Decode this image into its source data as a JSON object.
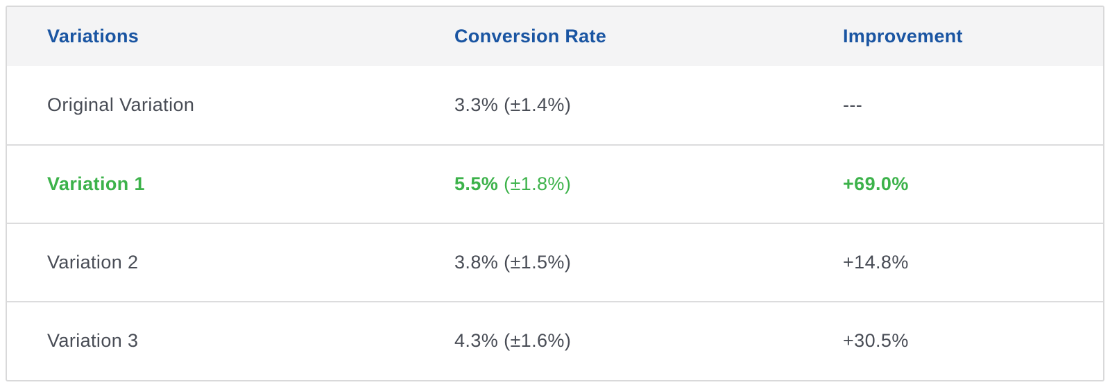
{
  "table": {
    "columns": [
      {
        "label": "Variations"
      },
      {
        "label": "Conversion Rate"
      },
      {
        "label": "Improvement"
      }
    ],
    "rows": [
      {
        "variation": "Original Variation",
        "rate_value": "3.3%",
        "rate_ci": "(±1.4%)",
        "improvement": "---",
        "highlight": false
      },
      {
        "variation": "Variation 1",
        "rate_value": "5.5%",
        "rate_ci": "(±1.8%)",
        "improvement": "+69.0%",
        "highlight": true
      },
      {
        "variation": "Variation 2",
        "rate_value": "3.8%",
        "rate_ci": "(±1.5%)",
        "improvement": "+14.8%",
        "highlight": false
      },
      {
        "variation": "Variation 3",
        "rate_value": "4.3%",
        "rate_ci": "(±1.6%)",
        "improvement": "+30.5%",
        "highlight": false
      }
    ]
  },
  "chart_data": {
    "type": "table",
    "title": "",
    "columns": [
      "Variations",
      "Conversion Rate",
      "Improvement"
    ],
    "rows": [
      [
        "Original Variation",
        "3.3% (±1.4%)",
        "---"
      ],
      [
        "Variation 1",
        "5.5% (±1.8%)",
        "+69.0%"
      ],
      [
        "Variation 2",
        "3.8% (±1.5%)",
        "+14.8%"
      ],
      [
        "Variation 3",
        "4.3% (±1.6%)",
        "+30.5%"
      ]
    ],
    "conversion_rate_pct": [
      3.3,
      5.5,
      3.8,
      4.3
    ],
    "conversion_rate_margin_pct": [
      1.4,
      1.8,
      1.5,
      1.6
    ],
    "improvement_pct": [
      null,
      69.0,
      14.8,
      30.5
    ],
    "highlighted_row": "Variation 1"
  },
  "colors": {
    "header_text": "#1a55a2",
    "body_text": "#484c55",
    "highlight_green": "#3cb24a",
    "header_bg": "#f4f4f5",
    "outer_border": "#d9d9da",
    "row_divider": "#dcdcdd"
  }
}
